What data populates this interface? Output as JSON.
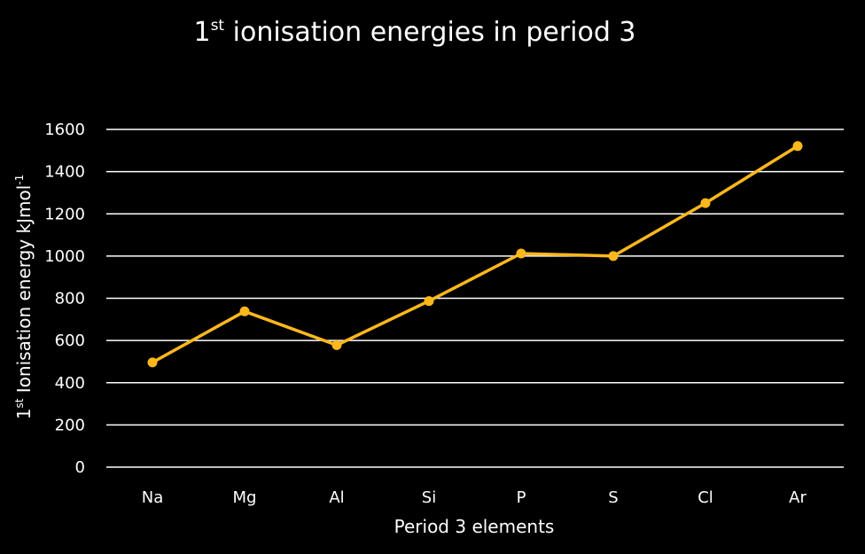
{
  "chart_data": {
    "type": "line",
    "title": {
      "prefix": "1",
      "sup": "st",
      "rest": " ionisation energies in period 3"
    },
    "xlabel": "Period 3 elements",
    "ylabel": {
      "prefix": "1",
      "sup1": "st",
      "main": " Ionisation energy kJmol",
      "sup2": "-1"
    },
    "categories": [
      "Na",
      "Mg",
      "Al",
      "Si",
      "P",
      "S",
      "Cl",
      "Ar"
    ],
    "series": [
      {
        "values": [
          496,
          738,
          578,
          787,
          1012,
          1000,
          1251,
          1521
        ],
        "color": "#FFB81C"
      }
    ],
    "ylim": [
      0,
      1600
    ],
    "yticks": [
      0,
      200,
      400,
      600,
      800,
      1000,
      1200,
      1400,
      1600
    ],
    "grid": true,
    "legend": "none",
    "background": "#000000",
    "gridcolor": "#ffffff"
  }
}
